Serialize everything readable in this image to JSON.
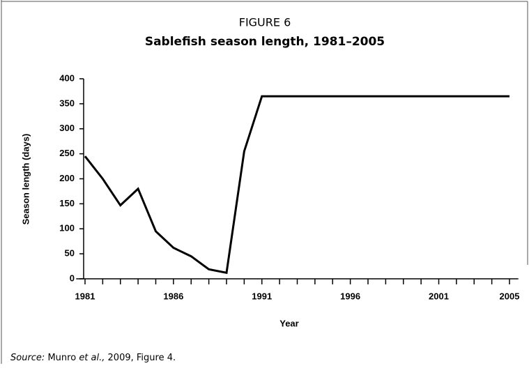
{
  "chart_data": {
    "type": "line",
    "figure_label": "FIGURE 6",
    "title": "Sablefish season length, 1981–2005",
    "x_label": "Year",
    "y_label": "Season length (days)",
    "x": [
      1981,
      1982,
      1983,
      1984,
      1985,
      1986,
      1987,
      1988,
      1989,
      1990,
      1991,
      1992,
      1993,
      1994,
      1995,
      1996,
      1997,
      1998,
      1999,
      2000,
      2001,
      2002,
      2003,
      2004,
      2005
    ],
    "series": [
      {
        "name": "Season length",
        "color": "#000000",
        "values": [
          245,
          200,
          147,
          180,
          95,
          62,
          45,
          19,
          12,
          255,
          365,
          365,
          365,
          365,
          365,
          365,
          365,
          365,
          365,
          365,
          365,
          365,
          365,
          365,
          365
        ]
      }
    ],
    "xlim": [
      1980.5,
      2005.5
    ],
    "xticks": [
      1981,
      1986,
      1991,
      1996,
      2001,
      2005
    ],
    "x_minor_ticks": [
      1982,
      1983,
      1984,
      1985,
      1987,
      1988,
      1989,
      1990,
      1992,
      1993,
      1994,
      1995,
      1997,
      1998,
      1999,
      2000,
      2002,
      2003,
      2004
    ],
    "ylim": [
      0,
      400
    ],
    "yticks": [
      0,
      50,
      100,
      150,
      200,
      250,
      300,
      350,
      400
    ],
    "grid": false,
    "source": [
      {
        "text": "Source:",
        "italic": true
      },
      {
        "text": " Munro ",
        "italic": false
      },
      {
        "text": "et al.,",
        "italic": true
      },
      {
        "text": " 2009, Figure 4.",
        "italic": false
      }
    ]
  }
}
